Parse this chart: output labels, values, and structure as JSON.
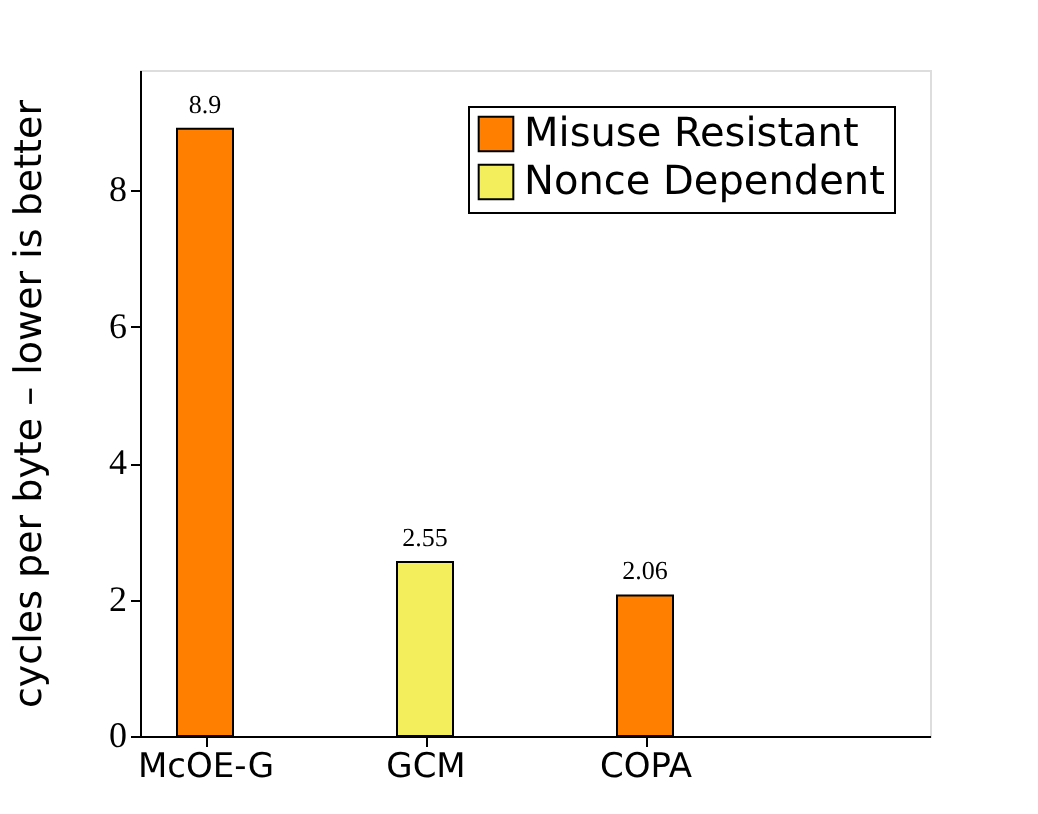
{
  "chart_data": {
    "type": "bar",
    "ylabel": "cycles per byte – lower is better",
    "categories": [
      "McOE-G",
      "GCM",
      "COPA"
    ],
    "series": [
      {
        "name": "Misuse Resistant",
        "color": "#ff8000",
        "values": [
          8.9,
          null,
          2.06
        ]
      },
      {
        "name": "Nonce Dependent",
        "color": "#f2ee5c",
        "values": [
          null,
          2.55,
          null
        ]
      }
    ],
    "ylim": [
      0,
      9.76
    ],
    "yticks": [
      0,
      2,
      4,
      6,
      8
    ],
    "data_labels": true,
    "legend": "top right"
  }
}
